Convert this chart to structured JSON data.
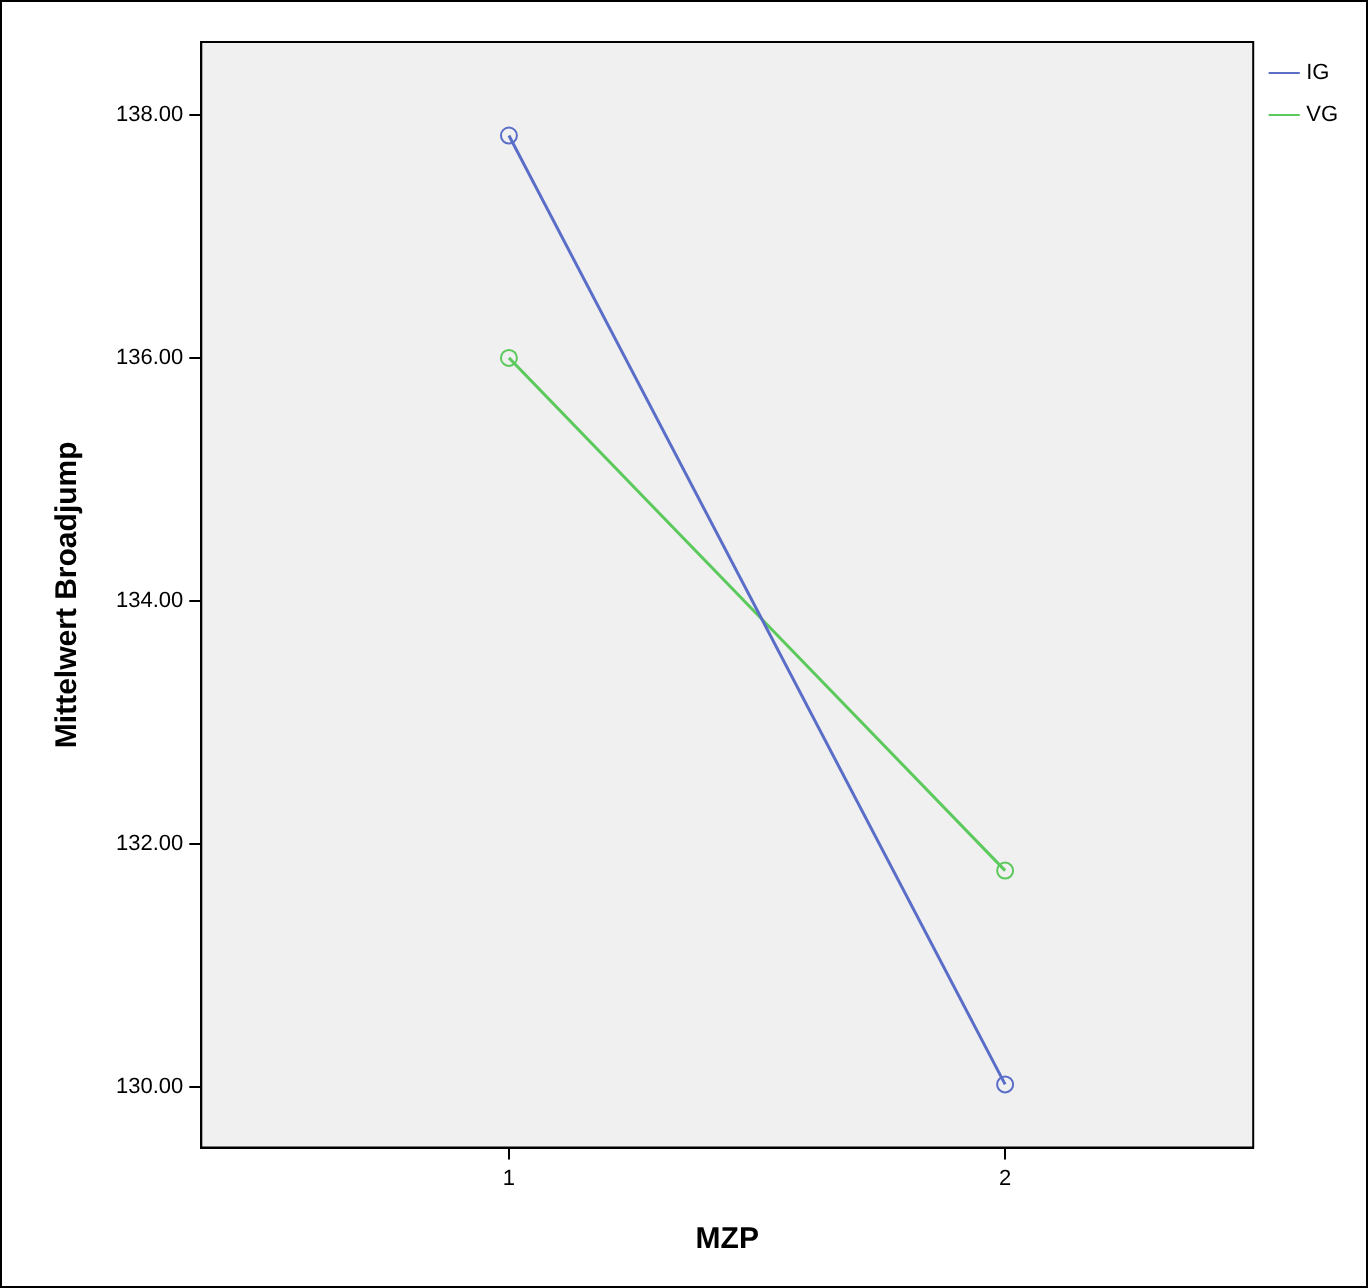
{
  "chart_data": {
    "type": "line",
    "xlabel": "MZP",
    "ylabel": "Mittelwert Broadjump",
    "x": [
      1,
      2
    ],
    "xlim": [
      0.38,
      2.5
    ],
    "xticks": [
      1,
      2
    ],
    "ylim": [
      129.5,
      138.6
    ],
    "yticks": [
      {
        "value": 130,
        "label": "130.00"
      },
      {
        "value": 132,
        "label": "132.00"
      },
      {
        "value": 134,
        "label": "134.00"
      },
      {
        "value": 136,
        "label": "136.00"
      },
      {
        "value": 138,
        "label": "138.00"
      }
    ],
    "series": [
      {
        "name": "IG",
        "color": "#5a6ec8",
        "values": [
          137.83,
          130.02
        ]
      },
      {
        "name": "VG",
        "color": "#5cc95c",
        "values": [
          136.0,
          131.78
        ]
      }
    ],
    "marker": "circle",
    "line_style": "solid",
    "grid": false,
    "legend": "top right"
  }
}
